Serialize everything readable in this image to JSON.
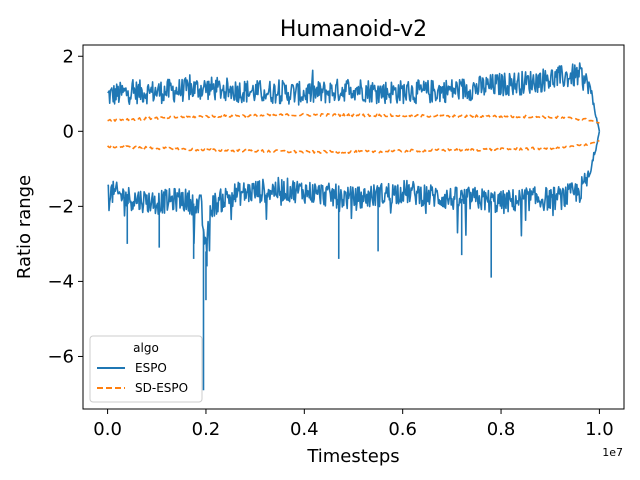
{
  "chart_data": {
    "type": "line",
    "title": "Humanoid-v2",
    "xlabel": "Timesteps",
    "ylabel": "Ratio range",
    "x_offset_label": "1e7",
    "xlim": [
      -0.05,
      1.05
    ],
    "ylim": [
      -7.4,
      2.3
    ],
    "x_ticks": [
      0.0,
      0.2,
      0.4,
      0.6,
      0.8,
      1.0
    ],
    "x_tick_labels": [
      "0.0",
      "0.2",
      "0.4",
      "0.6",
      "0.8",
      "1.0"
    ],
    "y_ticks": [
      -6,
      -4,
      -2,
      0,
      2
    ],
    "y_tick_labels": [
      "−6",
      "−4",
      "−2",
      "0",
      "2"
    ],
    "grid": false,
    "legend": {
      "title": "algo",
      "position": "lower-left"
    },
    "series": [
      {
        "name": "ESPO",
        "color": "#1f77b4",
        "style": "solid",
        "upper": {
          "x": [
            0.0,
            0.05,
            0.1,
            0.15,
            0.2,
            0.25,
            0.3,
            0.35,
            0.4,
            0.45,
            0.5,
            0.55,
            0.6,
            0.65,
            0.7,
            0.75,
            0.8,
            0.85,
            0.9,
            0.93,
            0.96,
            0.98,
            0.99,
            1.0
          ],
          "y": [
            0.95,
            1.05,
            1.05,
            1.1,
            1.15,
            1.1,
            1.05,
            1.05,
            1.0,
            1.05,
            1.15,
            1.05,
            1.05,
            1.05,
            1.1,
            1.15,
            1.25,
            1.3,
            1.4,
            1.45,
            1.5,
            1.2,
            0.6,
            0.0
          ]
        },
        "lower": {
          "x": [
            0.0,
            0.05,
            0.1,
            0.15,
            0.19,
            0.2,
            0.21,
            0.25,
            0.3,
            0.35,
            0.4,
            0.45,
            0.5,
            0.55,
            0.6,
            0.65,
            0.7,
            0.75,
            0.8,
            0.85,
            0.9,
            0.93,
            0.96,
            0.98,
            0.99,
            1.0
          ],
          "y": [
            -1.6,
            -1.8,
            -1.9,
            -1.8,
            -2.0,
            -3.2,
            -2.0,
            -1.7,
            -1.6,
            -1.55,
            -1.6,
            -1.7,
            -1.8,
            -1.7,
            -1.6,
            -1.7,
            -1.8,
            -1.8,
            -1.9,
            -1.8,
            -1.8,
            -1.75,
            -1.6,
            -1.2,
            -0.6,
            0.0
          ]
        },
        "spikes": [
          {
            "x": 0.195,
            "y": -6.9
          },
          {
            "x": 0.2,
            "y": -4.5
          },
          {
            "x": 0.202,
            "y": -3.6
          },
          {
            "x": 0.04,
            "y": -3.0
          },
          {
            "x": 0.105,
            "y": -3.1
          },
          {
            "x": 0.175,
            "y": -3.4
          },
          {
            "x": 0.47,
            "y": -3.4
          },
          {
            "x": 0.78,
            "y": -3.9
          },
          {
            "x": 0.55,
            "y": -3.2
          },
          {
            "x": 0.72,
            "y": -3.3
          }
        ]
      },
      {
        "name": "SD-ESPO",
        "color": "#ff7f0e",
        "style": "dashed",
        "upper": {
          "x": [
            0.0,
            0.1,
            0.2,
            0.3,
            0.4,
            0.5,
            0.6,
            0.7,
            0.8,
            0.9,
            0.95,
            0.98,
            1.0
          ],
          "y": [
            0.3,
            0.35,
            0.4,
            0.42,
            0.44,
            0.43,
            0.42,
            0.4,
            0.4,
            0.38,
            0.34,
            0.3,
            0.22
          ]
        },
        "lower": {
          "x": [
            0.0,
            0.1,
            0.2,
            0.3,
            0.4,
            0.5,
            0.6,
            0.7,
            0.8,
            0.9,
            0.95,
            0.98,
            1.0
          ],
          "y": [
            -0.4,
            -0.45,
            -0.5,
            -0.52,
            -0.55,
            -0.55,
            -0.52,
            -0.5,
            -0.48,
            -0.45,
            -0.4,
            -0.33,
            -0.25
          ]
        }
      }
    ]
  }
}
